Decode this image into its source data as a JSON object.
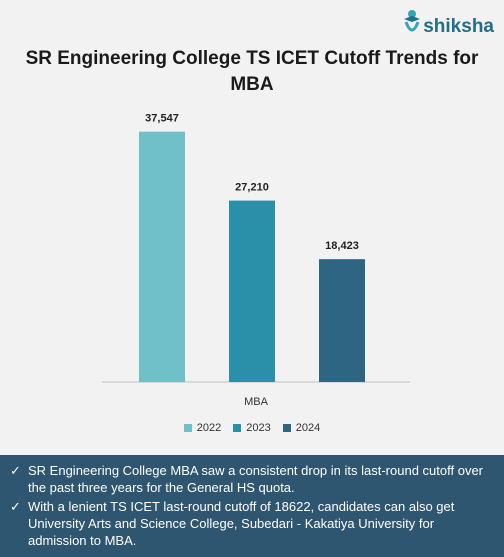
{
  "brand": {
    "name": "shiksha"
  },
  "chart_data": {
    "type": "bar",
    "title": "SR Engineering College TS ICET Cutoff Trends for MBA",
    "categories": [
      "MBA"
    ],
    "series": [
      {
        "name": "2022",
        "values": [
          37547
        ],
        "label": "37,547",
        "color": "#6fc0c8"
      },
      {
        "name": "2023",
        "values": [
          27210
        ],
        "label": "27,210",
        "color": "#2a8fa8"
      },
      {
        "name": "2024",
        "values": [
          18423
        ],
        "label": "18,423",
        "color": "#2d6583"
      }
    ],
    "ylim": [
      0,
      42000
    ],
    "grid": false,
    "legend": "bottom"
  },
  "notes": [
    "SR Engineering College MBA saw a consistent drop in its last-round cutoff over the past three years for the General HS quota.",
    "With a lenient TS ICET last-round cutoff of 18622, candidates can also get University Arts and Science College, Subedari - Kakatiya University for admission to MBA."
  ]
}
